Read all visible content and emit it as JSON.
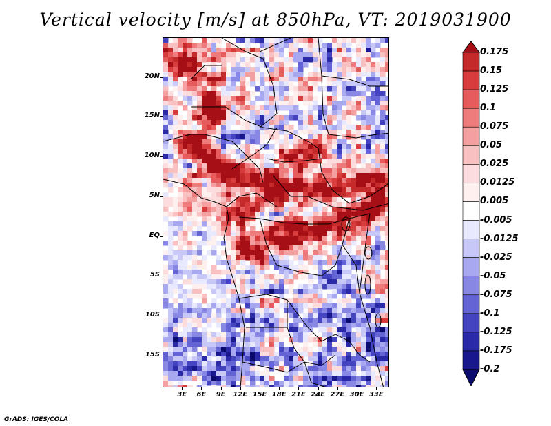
{
  "title": "Vertical velocity [m/s] at 850hPa, VT: 2019031900",
  "credit": "GrADS: IGES/COLA",
  "lat_labels": [
    {
      "text": "20N",
      "lat": 20
    },
    {
      "text": "15N",
      "lat": 15
    },
    {
      "text": "10N",
      "lat": 10
    },
    {
      "text": "5N",
      "lat": 5
    },
    {
      "text": "EQ",
      "lat": 0
    },
    {
      "text": "5S",
      "lat": -5
    },
    {
      "text": "10S",
      "lat": -10
    },
    {
      "text": "15S",
      "lat": -15
    }
  ],
  "lon_labels": [
    {
      "text": "3E",
      "lon": 3
    },
    {
      "text": "6E",
      "lon": 6
    },
    {
      "text": "9E",
      "lon": 9
    },
    {
      "text": "12E",
      "lon": 12
    },
    {
      "text": "15E",
      "lon": 15
    },
    {
      "text": "18E",
      "lon": 18
    },
    {
      "text": "21E",
      "lon": 21
    },
    {
      "text": "24E",
      "lon": 24
    },
    {
      "text": "27E",
      "lon": 27
    },
    {
      "text": "30E",
      "lon": 30
    },
    {
      "text": "33E",
      "lon": 33
    }
  ],
  "map_extent": {
    "lon_min": 0,
    "lon_max": 35,
    "lat_min": -19,
    "lat_max": 25
  },
  "colorbar": {
    "levels": [
      "0.175",
      "0.15",
      "0.125",
      "0.1",
      "0.075",
      "0.05",
      "0.025",
      "0.0125",
      "0.005",
      "-0.005",
      "-0.0125",
      "-0.025",
      "-0.05",
      "-0.075",
      "-0.1",
      "-0.125",
      "-0.175",
      "-0.2"
    ],
    "colors": [
      "#a50f15",
      "#c42a2a",
      "#d83c3c",
      "#e65c5c",
      "#ee7c7c",
      "#f4a0a0",
      "#f8c0c0",
      "#fcdcdc",
      "#fff0f0",
      "#ffffff",
      "#e8e8ff",
      "#c8c8f8",
      "#a8a8f0",
      "#8888e4",
      "#6464d4",
      "#4444c0",
      "#2a2aa8",
      "#18188c",
      "#0b0b6e"
    ]
  }
}
